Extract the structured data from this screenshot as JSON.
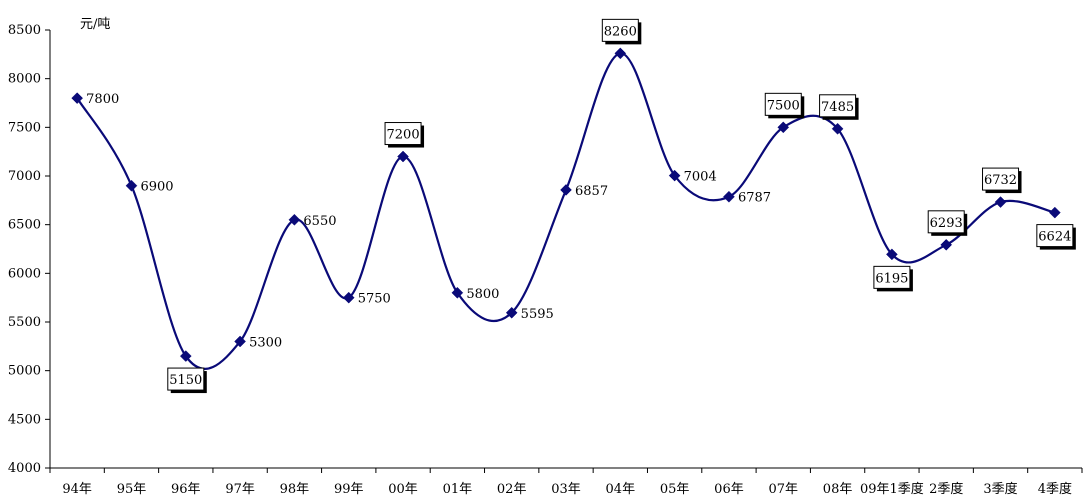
{
  "chart_data": {
    "type": "line",
    "title": "",
    "xlabel": "",
    "ylabel": "元/吨",
    "ylim": [
      4000,
      8500
    ],
    "yticks": [
      4000,
      4500,
      5000,
      5500,
      6000,
      6500,
      7000,
      7500,
      8000,
      8500
    ],
    "categories": [
      "94年",
      "95年",
      "96年",
      "97年",
      "98年",
      "99年",
      "00年",
      "01年",
      "02年",
      "03年",
      "04年",
      "05年",
      "06年",
      "07年",
      "08年",
      "09年1季度",
      "2季度",
      "3季度",
      "4季度"
    ],
    "series": [
      {
        "values": [
          7800,
          6900,
          5150,
          5300,
          6550,
          5750,
          7200,
          5800,
          5595,
          6857,
          8260,
          7004,
          6787,
          7500,
          7485,
          6195,
          6293,
          6732,
          6624
        ],
        "labels": [
          "7800",
          "6900",
          "5150",
          "5300",
          "6550",
          "5750",
          "7200",
          "5800",
          "5595",
          "6857",
          "8260",
          "7004",
          "6787",
          "7500",
          "7485",
          "6195",
          "6293",
          "6732",
          "6624"
        ],
        "boxed": [
          false,
          false,
          true,
          false,
          false,
          false,
          true,
          false,
          false,
          false,
          true,
          false,
          false,
          true,
          true,
          true,
          true,
          true,
          true
        ]
      }
    ],
    "grid": false,
    "legend": "none",
    "colors": {
      "line": "#0a0a78",
      "marker": "#0a0a78",
      "axis": "#000000",
      "box_shadow": "#000000"
    }
  }
}
